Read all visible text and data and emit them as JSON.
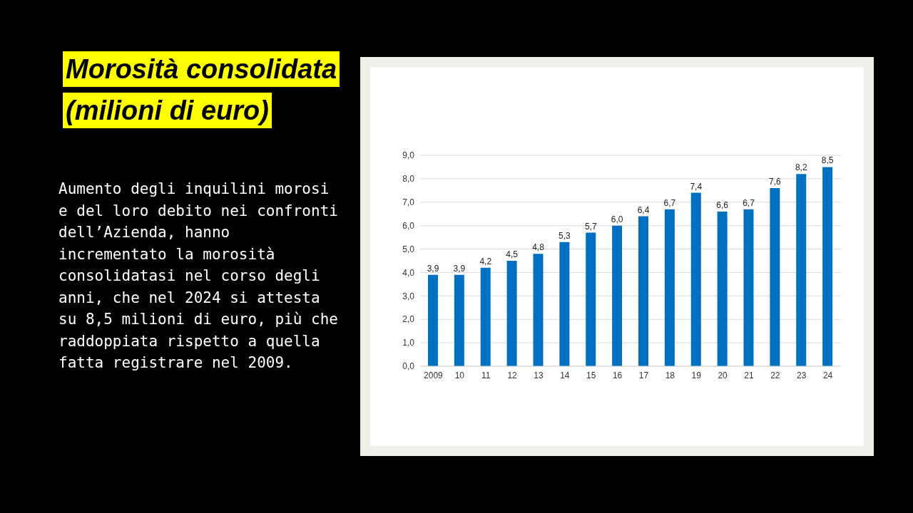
{
  "chart_data": {
    "type": "bar",
    "title": "Morosità consolidata",
    "subtitle": "(milioni di euro)",
    "annotations": [
      "Aumento degli inquilini morosi e del loro debito nei confronti dell’Azienda, hanno incrementato la morosità consolidatasi nel corso degli anni, che nel 2024 si attesta su 8,5 milioni di euro, più che raddoppiata rispetto a quella fatta registrare nel 2009."
    ],
    "categories": [
      "2009",
      "10",
      "11",
      "12",
      "13",
      "14",
      "15",
      "16",
      "17",
      "18",
      "19",
      "20",
      "21",
      "22",
      "23",
      "24"
    ],
    "values": [
      3.9,
      3.9,
      4.2,
      4.5,
      4.8,
      5.3,
      5.7,
      6.0,
      6.4,
      6.7,
      7.4,
      6.6,
      6.7,
      7.6,
      8.2,
      8.5
    ],
    "value_labels": [
      "3,9",
      "3,9",
      "4,2",
      "4,5",
      "4,8",
      "5,3",
      "5,7",
      "6,0",
      "6,4",
      "6,7",
      "7,4",
      "6,6",
      "6,7",
      "7,6",
      "8,2",
      "8,5"
    ],
    "color": "#0070c0",
    "ylim": [
      0,
      9
    ],
    "yticks": [
      {
        "value": 0,
        "label": "0,0"
      },
      {
        "value": 1,
        "label": "1,0"
      },
      {
        "value": 2,
        "label": "2,0"
      },
      {
        "value": 3,
        "label": "3,0"
      },
      {
        "value": 4,
        "label": "4,0"
      },
      {
        "value": 5,
        "label": "5,0"
      },
      {
        "value": 6,
        "label": "6,0"
      },
      {
        "value": 7,
        "label": "7,0"
      },
      {
        "value": 8,
        "label": "8,0"
      },
      {
        "value": 9,
        "label": "9,0"
      }
    ],
    "grid": "y"
  }
}
